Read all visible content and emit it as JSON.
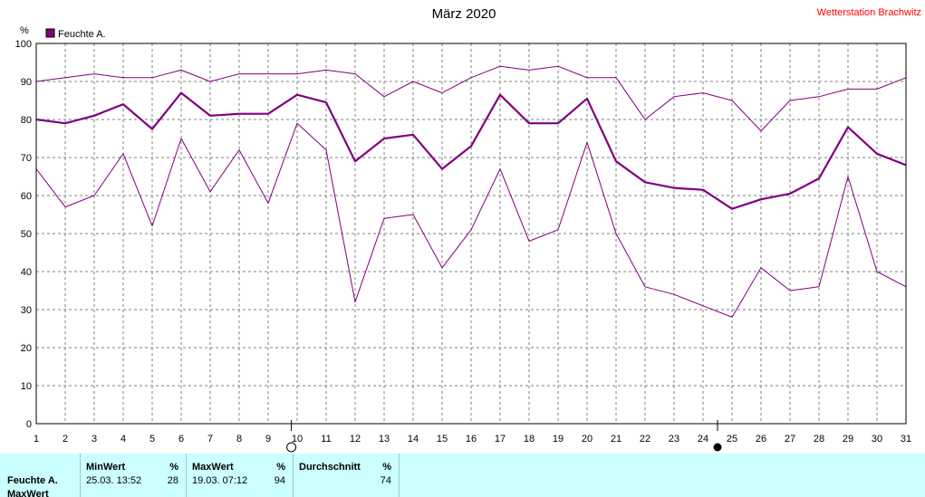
{
  "header": {
    "title": "März 2020",
    "station": "Wetterstation Brachwitz"
  },
  "chart_data": {
    "type": "line",
    "title": "März 2020",
    "ylabel": "%",
    "ylim": [
      0,
      100
    ],
    "yticks": [
      "0",
      "10",
      "20",
      "30",
      "40",
      "50",
      "60",
      "70",
      "80",
      "90",
      "100"
    ],
    "x": [
      "1",
      "2",
      "3",
      "4",
      "5",
      "6",
      "7",
      "8",
      "9",
      "10",
      "11",
      "12",
      "13",
      "14",
      "15",
      "16",
      "17",
      "18",
      "19",
      "20",
      "21",
      "22",
      "23",
      "24",
      "25",
      "26",
      "27",
      "28",
      "29",
      "30",
      "31"
    ],
    "grid": true,
    "legend": {
      "position": "top-left",
      "entries": [
        "Feuchte A."
      ]
    },
    "colors": {
      "line": "#800080",
      "legend_box": "#800080",
      "grid": "#808080"
    },
    "series": [
      {
        "name": "Feuchte A.",
        "role": "avg",
        "values": [
          80,
          79,
          81,
          84,
          77.5,
          87,
          81,
          81.5,
          81.5,
          86.5,
          84.5,
          69,
          75,
          76,
          67,
          73,
          86.5,
          79,
          79,
          85.5,
          69,
          63.5,
          62,
          61.5,
          56.5,
          59,
          60.5,
          64.5,
          78,
          71,
          68
        ]
      },
      {
        "role": "max",
        "values": [
          90,
          91,
          92,
          91,
          91,
          93,
          90,
          92,
          92,
          92,
          93,
          92,
          86,
          90,
          87,
          91,
          94,
          93,
          94,
          91,
          91,
          80,
          86,
          87,
          85,
          77,
          85,
          86,
          88,
          88,
          91
        ]
      },
      {
        "role": "min",
        "values": [
          67,
          57,
          60,
          71,
          52,
          75,
          61,
          72,
          58,
          79,
          72,
          32,
          54,
          55,
          41,
          51,
          67,
          48,
          51,
          74,
          50,
          36,
          34,
          31,
          28,
          41,
          35,
          36,
          65,
          40,
          36
        ]
      }
    ],
    "moon_markers": [
      {
        "day": 9.8,
        "phase": "full",
        "icon": "full-moon-icon"
      },
      {
        "day": 24.5,
        "phase": "new",
        "icon": "new-moon-icon"
      }
    ]
  },
  "stats": {
    "row_label": "Feuchte A.",
    "row_label_2": "MaxWert",
    "min": {
      "header": "MinWert",
      "unit": "%",
      "datetime": "25.03.  13:52",
      "value": "28"
    },
    "max": {
      "header": "MaxWert",
      "unit": "%",
      "datetime": "19.03.  07:12",
      "value": "94"
    },
    "avg": {
      "header": "Durchschnitt",
      "unit": "%",
      "value": "74"
    }
  }
}
